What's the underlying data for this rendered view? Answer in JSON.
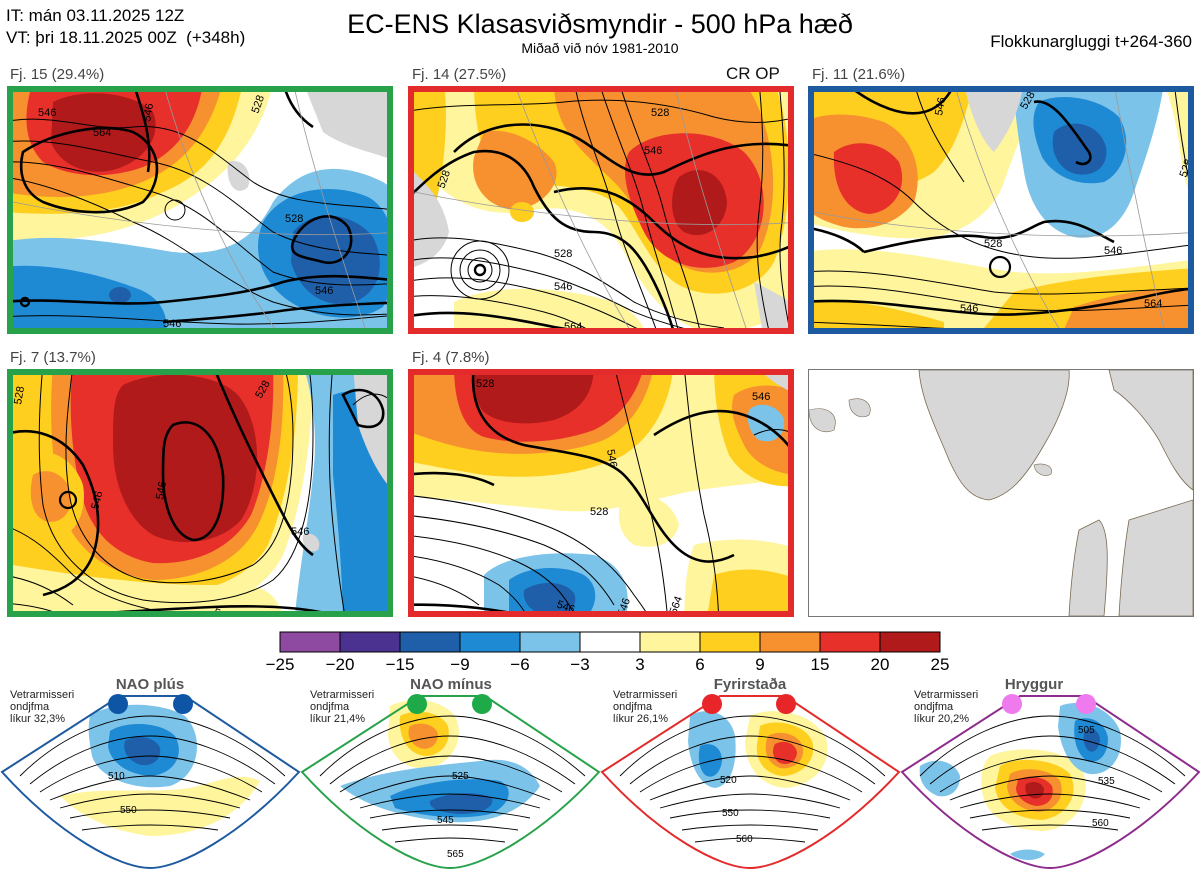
{
  "header": {
    "it_line": "IT: mán 03.11.2025 12Z",
    "vt_line": "VT: þri 18.11.2025 00Z  (+348h)",
    "title": "EC-ENS Klasasviðsmyndir - 500 hPa hæð",
    "subtitle": "Miðað við nóv 1981-2010",
    "window": "Flokkunargluggi t+264-360"
  },
  "clusters": [
    {
      "label": "Fj. 15 (29.4%)",
      "border": "#27a24a",
      "contours": [
        "546",
        "564",
        "546",
        "528",
        "546",
        "546",
        "528"
      ]
    },
    {
      "label": "Fj. 14 (27.5%)",
      "border": "#e32b2b",
      "extra": "CR OP",
      "contours": [
        "528",
        "546",
        "528",
        "528",
        "546",
        "564",
        "564"
      ]
    },
    {
      "label": "Fj. 11 (21.6%)",
      "border": "#1e5aa0",
      "contours": [
        "546",
        "528",
        "528",
        "546",
        "546",
        "564",
        "564",
        "528"
      ]
    },
    {
      "label": "Fj. 7 (13.7%)",
      "border": "#27a24a",
      "contours": [
        "528",
        "546",
        "546",
        "546",
        "546",
        "528"
      ]
    },
    {
      "label": "Fj. 4 (7.8%)",
      "border": "#e32b2b",
      "contours": [
        "528",
        "546",
        "528",
        "546",
        "546",
        "546",
        "564"
      ]
    }
  ],
  "colorbar": {
    "colors": [
      "#8e4aa0",
      "#4b3291",
      "#1f5ea8",
      "#1f8ad4",
      "#7cc3ea",
      "#ffffff",
      "#fff59d",
      "#ffcf1f",
      "#f7912f",
      "#e8302b",
      "#b11a1a"
    ],
    "ticks": [
      "−25",
      "−20",
      "−15",
      "−9",
      "−6",
      "−3",
      "3",
      "6",
      "9",
      "15",
      "20",
      "25"
    ]
  },
  "regimes": [
    {
      "name": "NAO plús",
      "line1": "Vetrarmisseri",
      "line2": "ondjfma",
      "line3": "líkur 32,3%",
      "color": "#1e5aa0",
      "dot_color": "#0f55a6",
      "contours": [
        "510",
        "550"
      ]
    },
    {
      "name": "NAO mínus",
      "line1": "Vetrarmisseri",
      "line2": "ondjfma",
      "line3": "líkur 21,4%",
      "color": "#27a24a",
      "dot_color": "#1faa4a",
      "contours": [
        "525",
        "545",
        "565"
      ]
    },
    {
      "name": "Fyrirstaða",
      "line1": "Vetrarmisseri",
      "line2": "ondjfma",
      "line3": "líkur 26,1%",
      "color": "#e32b2b",
      "dot_color": "#e8262a",
      "contours": [
        "520",
        "550",
        "560"
      ]
    },
    {
      "name": "Hryggur",
      "line1": "Vetrarmisseri",
      "line2": "ondjfma",
      "line3": "líkur 20,2%",
      "color": "#8e2c8e",
      "dot_color": "#ee7aee",
      "contours": [
        "505",
        "535",
        "560"
      ]
    }
  ]
}
